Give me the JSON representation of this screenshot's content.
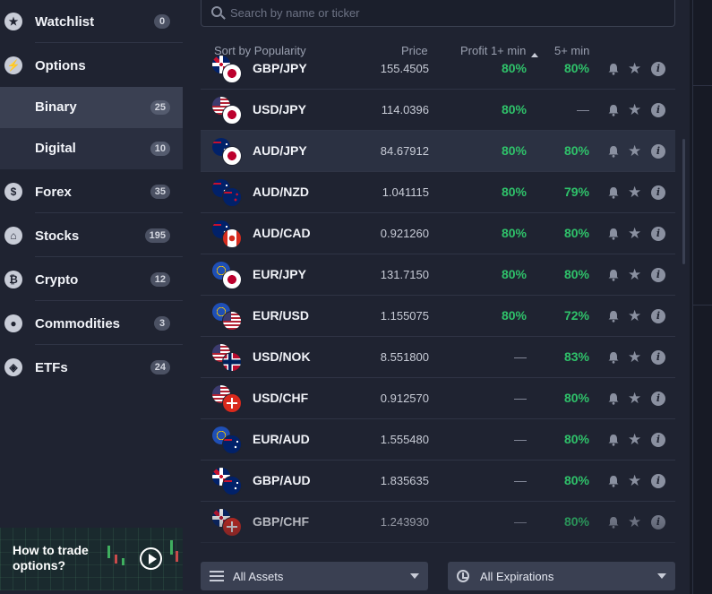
{
  "sidebar": {
    "items": [
      {
        "label": "Watchlist",
        "count": "0",
        "icon": "star-icon",
        "glyph": "★"
      },
      {
        "label": "Options",
        "count": "",
        "icon": "lightning-icon",
        "glyph": "⚡"
      },
      {
        "label": "Forex",
        "count": "35",
        "icon": "dollar-icon",
        "glyph": "$"
      },
      {
        "label": "Stocks",
        "count": "195",
        "icon": "bank-icon",
        "glyph": "⌂"
      },
      {
        "label": "Crypto",
        "count": "12",
        "icon": "bitcoin-icon",
        "glyph": "₿"
      },
      {
        "label": "Commodities",
        "count": "3",
        "icon": "drop-icon",
        "glyph": "●"
      },
      {
        "label": "ETFs",
        "count": "24",
        "icon": "box-icon",
        "glyph": "◈"
      }
    ],
    "sub_items": [
      {
        "label": "Binary",
        "count": "25",
        "active": true
      },
      {
        "label": "Digital",
        "count": "10",
        "active": false
      }
    ],
    "promo": {
      "text": "How to trade options?"
    }
  },
  "search": {
    "placeholder": "Search by name or ticker"
  },
  "table": {
    "headers": {
      "sort": "Sort by Popularity",
      "price": "Price",
      "profit1": "Profit 1+ min",
      "profit5": "5+ min"
    },
    "rows": [
      {
        "pair": "GBP/JPY",
        "price": "155.4505",
        "p1": "80%",
        "p5": "80%",
        "flags": [
          "gb",
          "jp"
        ]
      },
      {
        "pair": "USD/JPY",
        "price": "114.0396",
        "p1": "80%",
        "p5": "—",
        "flags": [
          "us",
          "jp"
        ]
      },
      {
        "pair": "AUD/JPY",
        "price": "84.67912",
        "p1": "80%",
        "p5": "80%",
        "flags": [
          "au",
          "jp"
        ],
        "active": true
      },
      {
        "pair": "AUD/NZD",
        "price": "1.041115",
        "p1": "80%",
        "p5": "79%",
        "flags": [
          "au",
          "nz"
        ]
      },
      {
        "pair": "AUD/CAD",
        "price": "0.921260",
        "p1": "80%",
        "p5": "80%",
        "flags": [
          "au",
          "ca"
        ]
      },
      {
        "pair": "EUR/JPY",
        "price": "131.7150",
        "p1": "80%",
        "p5": "80%",
        "flags": [
          "eu",
          "jp"
        ]
      },
      {
        "pair": "EUR/USD",
        "price": "1.155075",
        "p1": "80%",
        "p5": "72%",
        "flags": [
          "eu",
          "us"
        ]
      },
      {
        "pair": "USD/NOK",
        "price": "8.551800",
        "p1": "—",
        "p5": "83%",
        "flags": [
          "us",
          "no"
        ]
      },
      {
        "pair": "USD/CHF",
        "price": "0.912570",
        "p1": "—",
        "p5": "80%",
        "flags": [
          "us",
          "ch"
        ]
      },
      {
        "pair": "EUR/AUD",
        "price": "1.555480",
        "p1": "—",
        "p5": "80%",
        "flags": [
          "eu",
          "au"
        ]
      },
      {
        "pair": "GBP/AUD",
        "price": "1.835635",
        "p1": "—",
        "p5": "80%",
        "flags": [
          "gb",
          "au"
        ]
      },
      {
        "pair": "GBP/CHF",
        "price": "1.243930",
        "p1": "—",
        "p5": "80%",
        "flags": [
          "gb",
          "ch"
        ]
      }
    ]
  },
  "filters": {
    "assets": "All Assets",
    "expirations": "All Expirations"
  },
  "colors": {
    "green": "#2fc26a",
    "panel": "#1f2331",
    "active": "#3a4052"
  }
}
